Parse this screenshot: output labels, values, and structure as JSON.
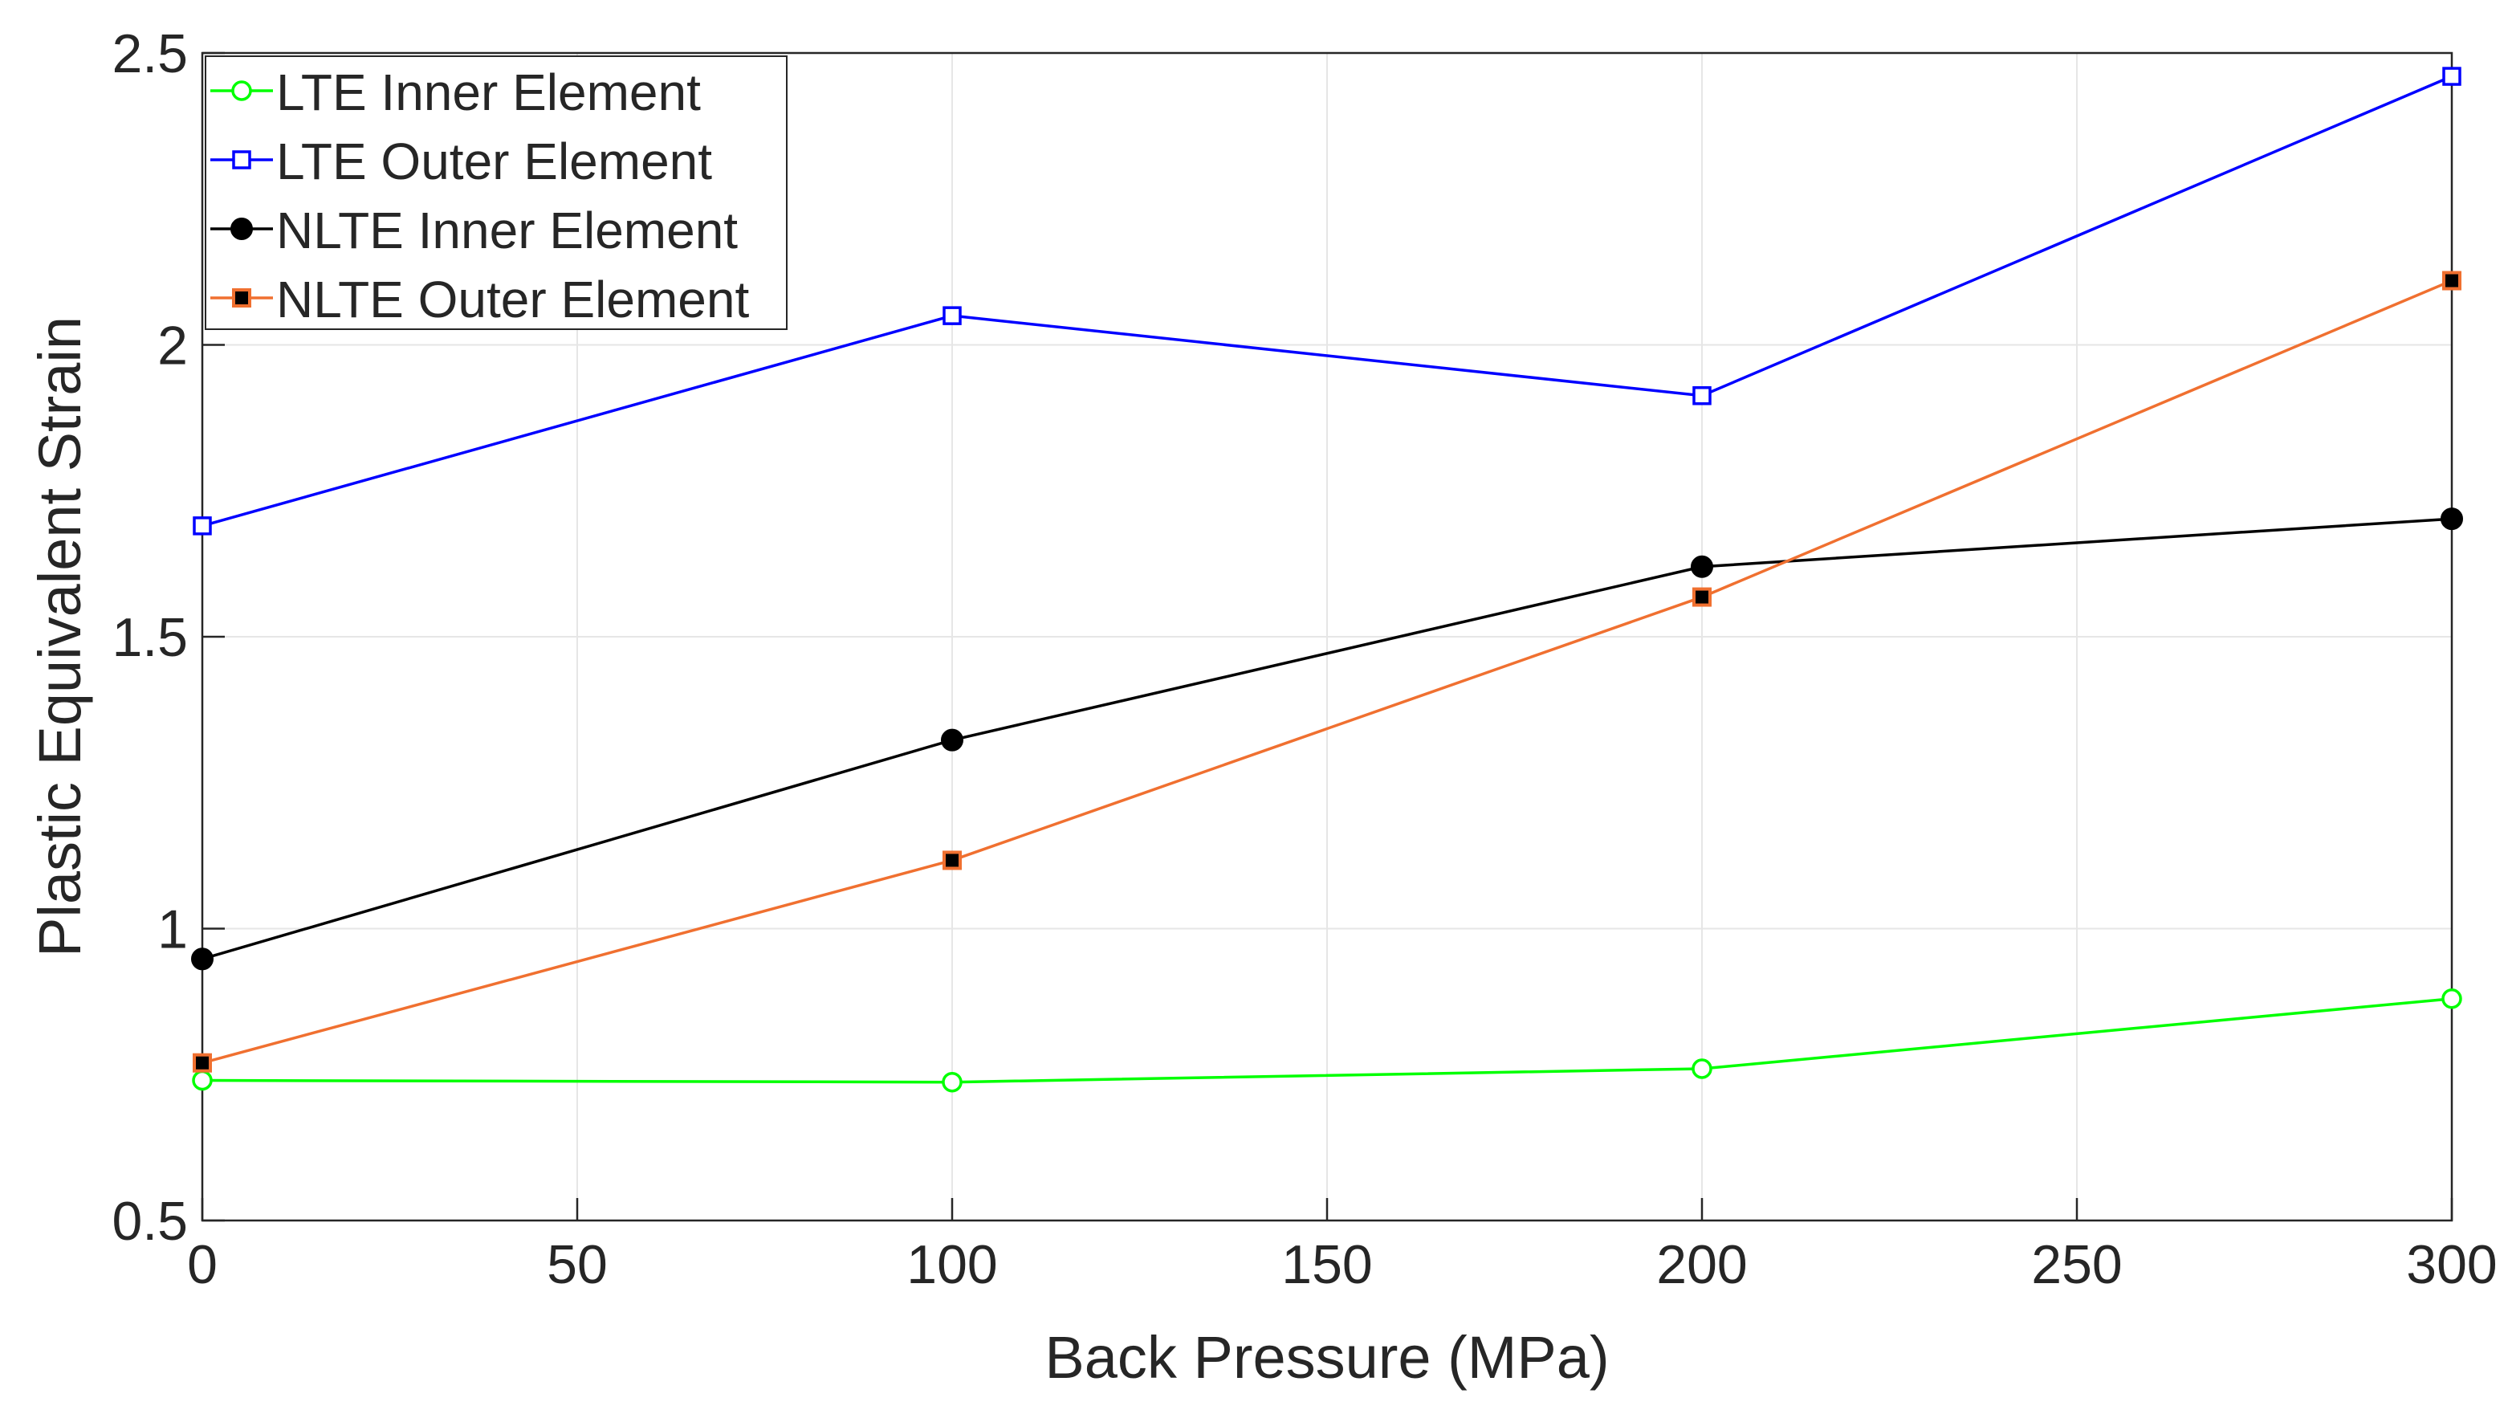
{
  "chart_data": {
    "type": "line",
    "title": "",
    "xlabel": "Back Pressure (MPa)",
    "ylabel": "Plastic Equivalent Strain",
    "xlim": [
      0,
      300
    ],
    "ylim": [
      0.5,
      2.5
    ],
    "xticks": [
      0,
      50,
      100,
      150,
      200,
      250,
      300
    ],
    "yticks": [
      0.5,
      1,
      1.5,
      2,
      2.5
    ],
    "xtick_labels": [
      "0",
      "50",
      "100",
      "150",
      "200",
      "250",
      "300"
    ],
    "ytick_labels": [
      "0.5",
      "1",
      "1.5",
      "2",
      "2.5"
    ],
    "grid": true,
    "legend_position": "top-left",
    "x": [
      0,
      100,
      200,
      300
    ],
    "series": [
      {
        "name": "LTE Inner Element",
        "values": [
          0.74,
          0.737,
          0.76,
          0.88
        ],
        "color": "#00ff00",
        "marker": "open-circle"
      },
      {
        "name": "LTE Outer Element",
        "values": [
          1.69,
          2.05,
          1.913,
          2.46
        ],
        "color": "#0000ff",
        "marker": "open-square"
      },
      {
        "name": "NLTE Inner Element",
        "values": [
          0.948,
          1.323,
          1.62,
          1.702
        ],
        "color": "#000000",
        "marker": "filled-circle"
      },
      {
        "name": "NLTE Outer Element",
        "values": [
          0.77,
          1.117,
          1.568,
          2.11
        ],
        "color": "#f07030",
        "marker": "filled-square-black-fill"
      }
    ]
  }
}
